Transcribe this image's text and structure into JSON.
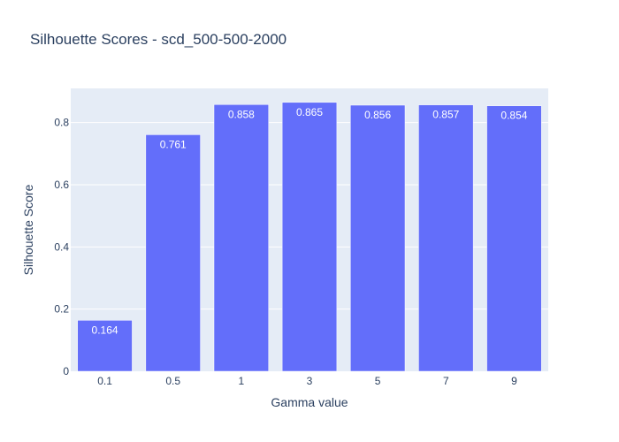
{
  "chart_data": {
    "type": "bar",
    "title": "Silhouette Scores - scd_500-500-2000",
    "xlabel": "Gamma value",
    "ylabel": "Silhouette Score",
    "categories": [
      "0.1",
      "0.5",
      "1",
      "3",
      "5",
      "7",
      "9"
    ],
    "values": [
      0.164,
      0.761,
      0.858,
      0.865,
      0.856,
      0.857,
      0.854
    ],
    "value_labels": [
      "0.164",
      "0.761",
      "0.858",
      "0.865",
      "0.856",
      "0.857",
      "0.854"
    ],
    "ylim": [
      0,
      0.91
    ],
    "yticks": [
      0,
      0.2,
      0.4,
      0.6,
      0.8
    ],
    "ytick_labels": [
      "0",
      "0.2",
      "0.4",
      "0.6",
      "0.8"
    ],
    "grid": true,
    "legend": "none",
    "colors": {
      "bar": "#636efa",
      "plot_background": "#e5ecf6",
      "grid": "#ffffff",
      "text": "#2a3f5f"
    }
  }
}
